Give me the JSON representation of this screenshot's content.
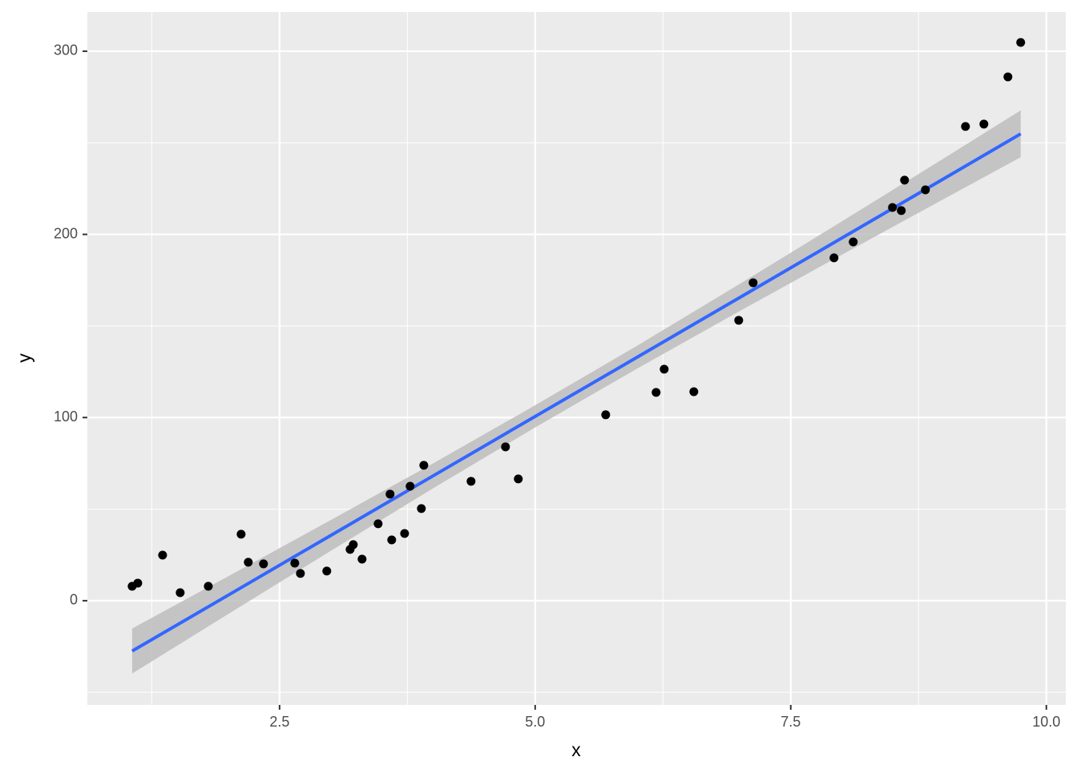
{
  "chart_data": {
    "type": "scatter",
    "x_label": "x",
    "y_label": "y",
    "xlim": [
      0.62,
      10.19
    ],
    "ylim": [
      -56.9,
      321.4
    ],
    "xticks": [
      2.5,
      {
        "value": 5,
        "label": "5.0"
      },
      7.5,
      {
        "value": 10,
        "label": "10.0"
      }
    ],
    "yticks": [
      0,
      100,
      200,
      300
    ],
    "x_minor_ticks": [
      1.25,
      3.75,
      6.25,
      8.75
    ],
    "y_minor_ticks": [
      -50,
      50,
      150,
      250
    ],
    "grid": true,
    "points": {
      "color": "#000000",
      "x": [
        1.058,
        1.113,
        1.356,
        1.528,
        1.803,
        2.124,
        2.194,
        2.343,
        2.649,
        2.704,
        2.962,
        3.19,
        3.221,
        3.307,
        3.464,
        3.581,
        3.597,
        3.723,
        3.777,
        3.887,
        3.911,
        4.373,
        4.71,
        4.835,
        5.69,
        6.183,
        6.262,
        6.552,
        6.991,
        7.132,
        7.923,
        8.111,
        8.495,
        8.581,
        8.613,
        8.817,
        9.209,
        9.389,
        9.624,
        9.749
      ],
      "y": [
        7.9,
        9.6,
        24.9,
        4.4,
        7.9,
        36.3,
        21.0,
        20.1,
        20.5,
        14.9,
        16.2,
        28.0,
        30.6,
        22.7,
        42.0,
        58.2,
        33.2,
        36.7,
        62.5,
        50.3,
        73.9,
        65.2,
        84.0,
        66.5,
        101.5,
        113.7,
        126.4,
        114.1,
        153.1,
        173.6,
        187.2,
        195.9,
        214.7,
        213.0,
        229.6,
        224.3,
        258.9,
        260.2,
        286.0,
        304.8
      ]
    },
    "smooth": {
      "color": "#3366ff",
      "band_color": "#bdbdbd",
      "x": [
        1.058,
        2,
        3,
        4,
        5,
        6,
        7,
        8,
        9,
        9.749
      ],
      "fit": [
        -27.5,
        3.1,
        35.6,
        68.1,
        100.6,
        133.0,
        165.5,
        198.0,
        230.5,
        254.9
      ],
      "lower": [
        -39.8,
        -7.2,
        27.2,
        61.3,
        94.6,
        126.8,
        158.1,
        188.9,
        219.4,
        242.1
      ],
      "upper": [
        -15.2,
        13.4,
        44.0,
        74.9,
        106.7,
        139.3,
        172.9,
        207.1,
        241.6,
        267.7
      ]
    }
  }
}
